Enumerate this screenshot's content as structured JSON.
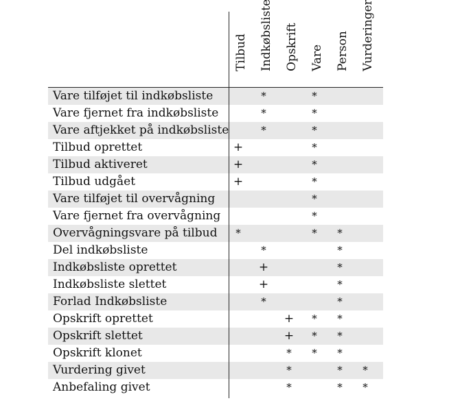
{
  "columns": [
    "Tilbud",
    "Indkøbsliste",
    "Opskrift",
    "Vare",
    "Person",
    "Vurderinger"
  ],
  "rows": [
    {
      "label": "Vare tilføjet til indkøbsliste",
      "cells": [
        "",
        "*",
        "",
        "*",
        "",
        ""
      ]
    },
    {
      "label": "Vare fjernet fra indkøbsliste",
      "cells": [
        "",
        "*",
        "",
        "*",
        "",
        ""
      ]
    },
    {
      "label": "Vare aftjekket på indkøbsliste",
      "cells": [
        "",
        "*",
        "",
        "*",
        "",
        ""
      ]
    },
    {
      "label": "Tilbud oprettet",
      "cells": [
        "+",
        "",
        "",
        "*",
        "",
        ""
      ]
    },
    {
      "label": "Tilbud aktiveret",
      "cells": [
        "+",
        "",
        "",
        "*",
        "",
        ""
      ]
    },
    {
      "label": "Tilbud udgået",
      "cells": [
        "+",
        "",
        "",
        "*",
        "",
        ""
      ]
    },
    {
      "label": "Vare tilføjet til overvågning",
      "cells": [
        "",
        "",
        "",
        "*",
        "",
        ""
      ]
    },
    {
      "label": "Vare fjernet fra overvågning",
      "cells": [
        "",
        "",
        "",
        "*",
        "",
        ""
      ]
    },
    {
      "label": "Overvågningsvare på tilbud",
      "cells": [
        "*",
        "",
        "",
        "*",
        "*",
        ""
      ]
    },
    {
      "label": "Del indkøbsliste",
      "cells": [
        "",
        "*",
        "",
        "",
        "*",
        ""
      ]
    },
    {
      "label": "Indkøbsliste oprettet",
      "cells": [
        "",
        "+",
        "",
        "",
        "*",
        ""
      ]
    },
    {
      "label": "Indkøbsliste slettet",
      "cells": [
        "",
        "+",
        "",
        "",
        "*",
        ""
      ]
    },
    {
      "label": "Forlad Indkøbsliste",
      "cells": [
        "",
        "*",
        "",
        "",
        "*",
        ""
      ]
    },
    {
      "label": "Opskrift oprettet",
      "cells": [
        "",
        "",
        "+",
        "*",
        "*",
        ""
      ]
    },
    {
      "label": "Opskrift slettet",
      "cells": [
        "",
        "",
        "+",
        "*",
        "*",
        ""
      ]
    },
    {
      "label": "Opskrift klonet",
      "cells": [
        "",
        "",
        "*",
        "*",
        "*",
        ""
      ]
    },
    {
      "label": "Vurdering givet",
      "cells": [
        "",
        "",
        "*",
        "",
        "*",
        "*"
      ]
    },
    {
      "label": "Anbefaling givet",
      "cells": [
        "",
        "",
        "*",
        "",
        "*",
        "*"
      ]
    }
  ],
  "colors": {
    "row_shade": "#e8e8e8",
    "rule": "#222222",
    "text": "#111111"
  }
}
